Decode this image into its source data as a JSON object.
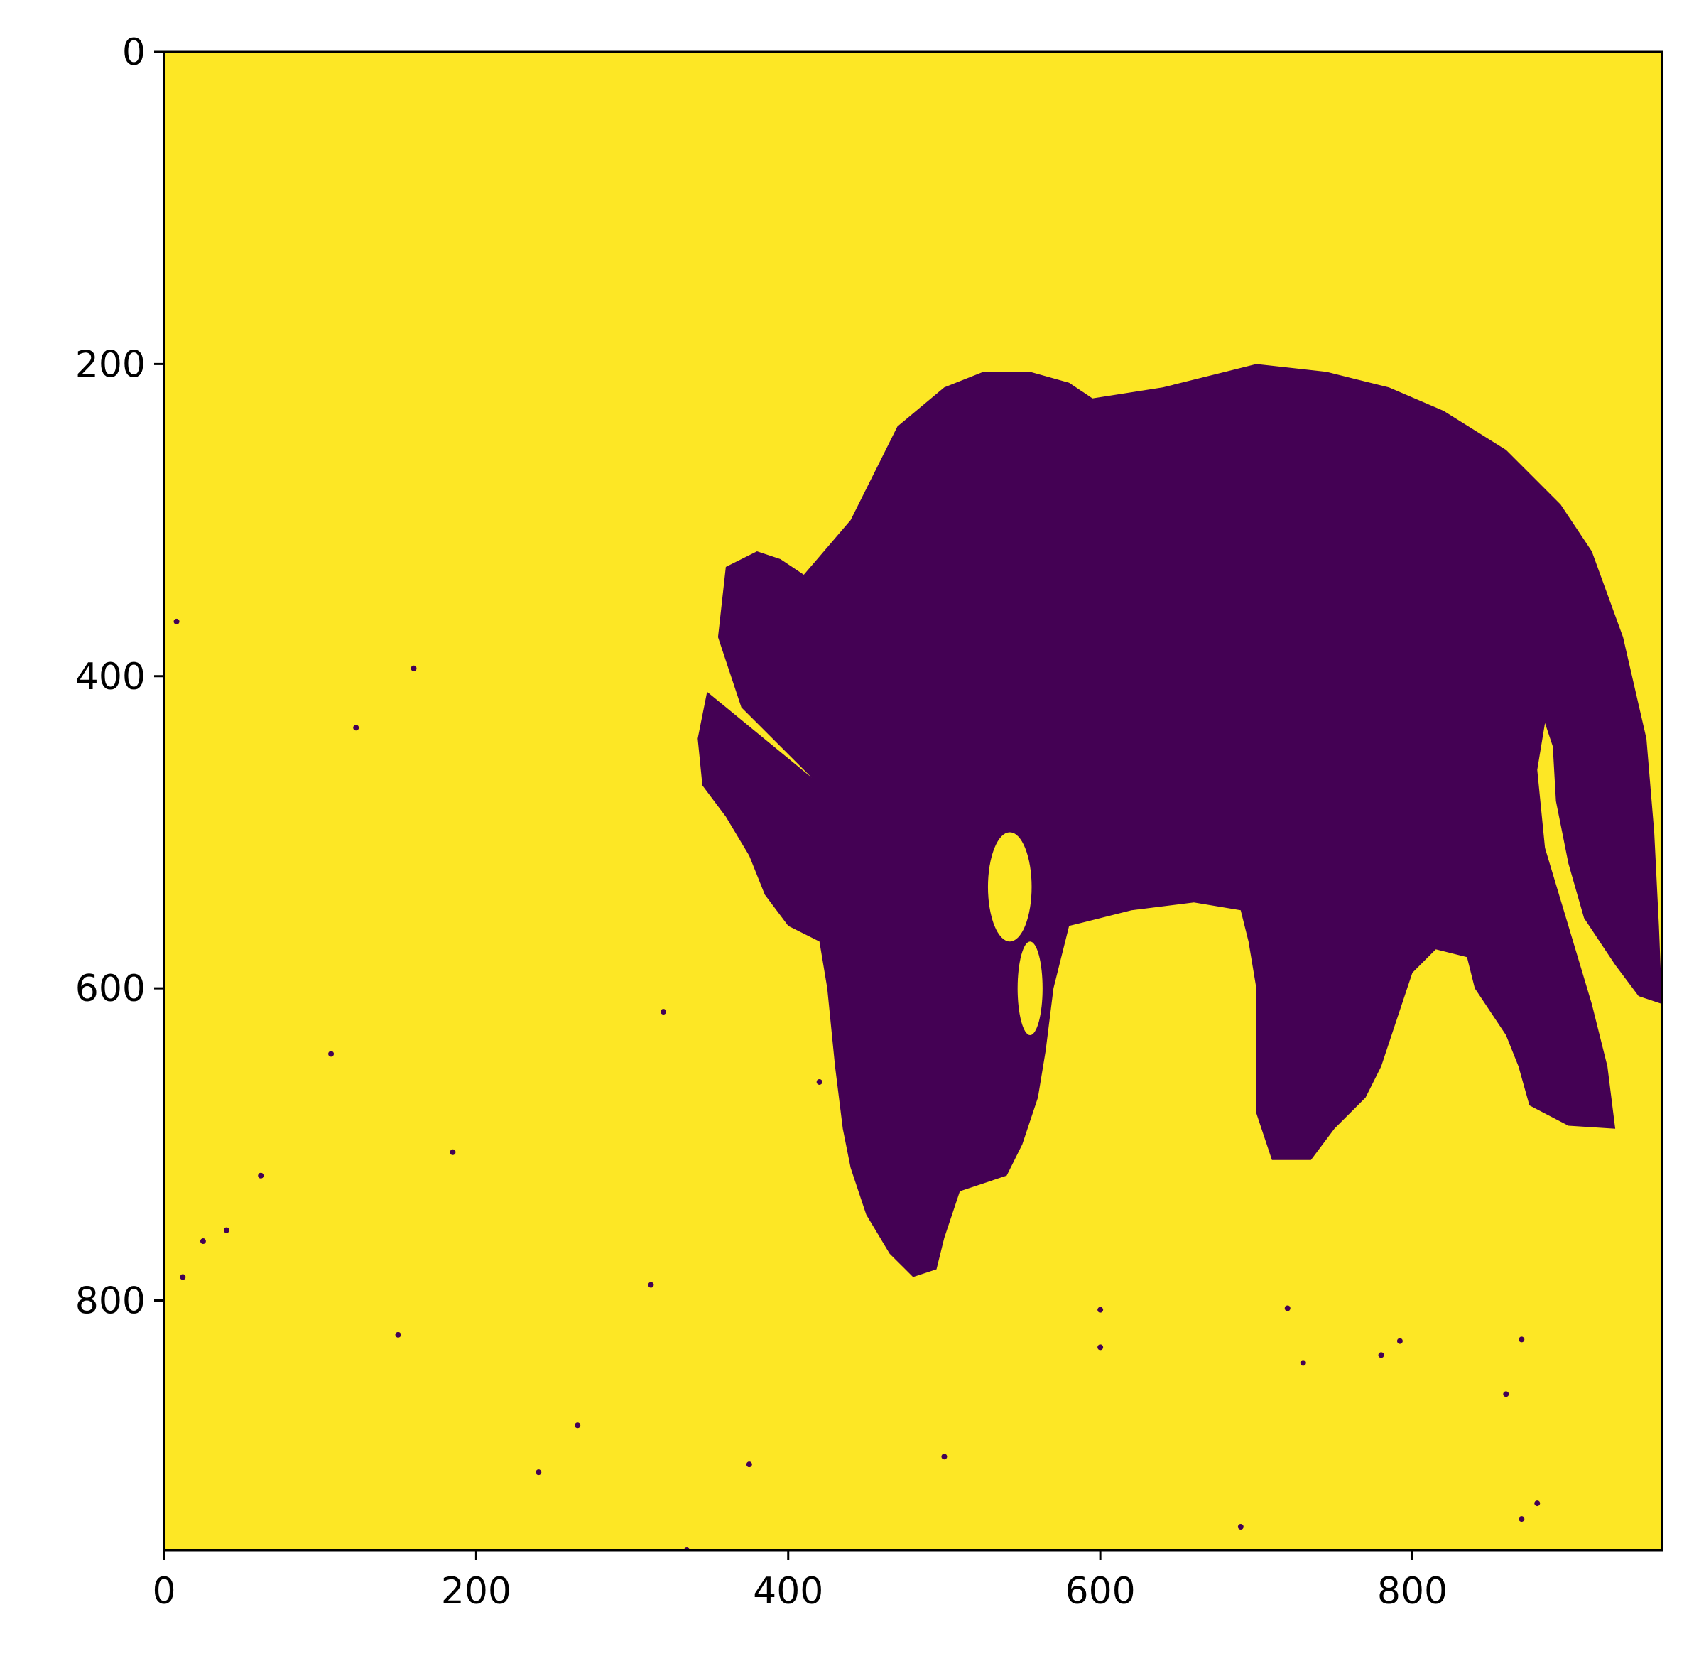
{
  "chart_data": {
    "type": "heatmap",
    "title": "",
    "xlabel": "",
    "ylabel": "",
    "colormap": "viridis",
    "colors": {
      "low": "#440154",
      "high": "#fde725",
      "axis": "#000000",
      "background": "#ffffff"
    },
    "image_shape": {
      "rows": 960,
      "cols": 960
    },
    "xlim": [
      0,
      960
    ],
    "ylim": [
      960,
      0
    ],
    "y_inverted": true,
    "x_ticks": [
      0,
      200,
      400,
      600,
      800
    ],
    "y_ticks": [
      0,
      200,
      400,
      600,
      800
    ],
    "grid": false,
    "values": "binary mask: 0 = dark (elephant silhouette), 1 = bright (background)",
    "silhouette_outline": [
      [
        415,
        465
      ],
      [
        370,
        420
      ],
      [
        355,
        375
      ],
      [
        360,
        330
      ],
      [
        380,
        320
      ],
      [
        395,
        325
      ],
      [
        410,
        335
      ],
      [
        440,
        300
      ],
      [
        470,
        240
      ],
      [
        500,
        215
      ],
      [
        525,
        205
      ],
      [
        555,
        205
      ],
      [
        580,
        212
      ],
      [
        595,
        222
      ],
      [
        640,
        215
      ],
      [
        680,
        205
      ],
      [
        700,
        200
      ],
      [
        745,
        205
      ],
      [
        785,
        215
      ],
      [
        820,
        230
      ],
      [
        860,
        255
      ],
      [
        895,
        290
      ],
      [
        915,
        320
      ],
      [
        935,
        375
      ],
      [
        950,
        440
      ],
      [
        955,
        500
      ],
      [
        958,
        560
      ],
      [
        960,
        610
      ],
      [
        945,
        605
      ],
      [
        930,
        585
      ],
      [
        910,
        555
      ],
      [
        900,
        520
      ],
      [
        892,
        480
      ],
      [
        890,
        445
      ],
      [
        885,
        430
      ],
      [
        880,
        460
      ],
      [
        885,
        510
      ],
      [
        900,
        560
      ],
      [
        915,
        610
      ],
      [
        925,
        650
      ],
      [
        930,
        690
      ],
      [
        900,
        688
      ],
      [
        875,
        675
      ],
      [
        868,
        650
      ],
      [
        860,
        630
      ],
      [
        840,
        600
      ],
      [
        835,
        580
      ],
      [
        815,
        575
      ],
      [
        800,
        590
      ],
      [
        790,
        620
      ],
      [
        780,
        650
      ],
      [
        770,
        670
      ],
      [
        750,
        690
      ],
      [
        735,
        710
      ],
      [
        710,
        710
      ],
      [
        700,
        680
      ],
      [
        700,
        640
      ],
      [
        700,
        600
      ],
      [
        695,
        570
      ],
      [
        690,
        550
      ],
      [
        660,
        545
      ],
      [
        620,
        550
      ],
      [
        580,
        560
      ],
      [
        570,
        600
      ],
      [
        565,
        640
      ],
      [
        560,
        670
      ],
      [
        550,
        700
      ],
      [
        540,
        720
      ],
      [
        510,
        730
      ],
      [
        500,
        760
      ],
      [
        495,
        780
      ],
      [
        480,
        785
      ],
      [
        465,
        770
      ],
      [
        450,
        745
      ],
      [
        440,
        715
      ],
      [
        435,
        690
      ],
      [
        430,
        650
      ],
      [
        425,
        600
      ],
      [
        420,
        570
      ],
      [
        400,
        560
      ],
      [
        385,
        540
      ],
      [
        375,
        515
      ],
      [
        360,
        490
      ],
      [
        345,
        470
      ],
      [
        342,
        440
      ],
      [
        348,
        410
      ]
    ],
    "holes": [
      {
        "center": [
          542,
          535
        ],
        "rx": 14,
        "ry": 35
      },
      {
        "center": [
          555,
          600
        ],
        "rx": 8,
        "ry": 30
      }
    ],
    "noise_points": [
      [
        8,
        365
      ],
      [
        160,
        395
      ],
      [
        123,
        433
      ],
      [
        107,
        642
      ],
      [
        12,
        785
      ],
      [
        25,
        762
      ],
      [
        40,
        755
      ],
      [
        62,
        720
      ],
      [
        150,
        822
      ],
      [
        320,
        615
      ],
      [
        420,
        660
      ],
      [
        312,
        790
      ],
      [
        600,
        806
      ],
      [
        720,
        805
      ],
      [
        730,
        840
      ],
      [
        792,
        826
      ],
      [
        870,
        825
      ],
      [
        860,
        860
      ],
      [
        880,
        930
      ],
      [
        690,
        945
      ],
      [
        335,
        960
      ],
      [
        240,
        910
      ],
      [
        780,
        835
      ],
      [
        870,
        940
      ],
      [
        600,
        830
      ],
      [
        500,
        900
      ],
      [
        375,
        905
      ],
      [
        265,
        880
      ],
      [
        185,
        705
      ],
      [
        850,
        600
      ]
    ]
  }
}
